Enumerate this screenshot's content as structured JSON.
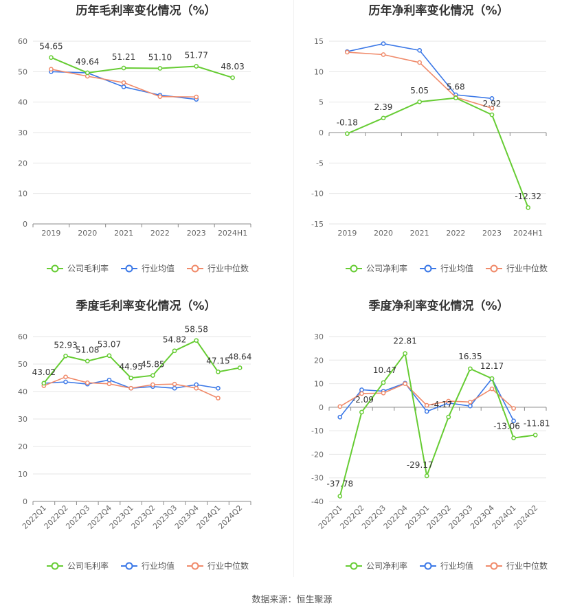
{
  "footer": {
    "source": "数据来源：恒生聚源"
  },
  "colors": {
    "company": "#66cc33",
    "avg": "#3b78e7",
    "median": "#f08a6a",
    "grid": "#e6e6e6",
    "axis": "#999999"
  },
  "chart_data": [
    {
      "type": "line",
      "title": "历年毛利率变化情况（%）",
      "categories": [
        "2019",
        "2020",
        "2021",
        "2022",
        "2023",
        "2024H1"
      ],
      "ylim": [
        0,
        60
      ],
      "yticks": [
        0,
        10,
        20,
        30,
        40,
        50,
        60
      ],
      "grid": true,
      "legend_position": "bottom",
      "series": [
        {
          "name": "公司毛利率",
          "color": "#66cc33",
          "values": [
            54.65,
            49.64,
            51.21,
            51.1,
            51.77,
            48.03
          ],
          "labels": [
            "54.65",
            "49.64",
            "51.21",
            "51.10",
            "51.77",
            "48.03"
          ]
        },
        {
          "name": "行业均值",
          "color": "#3b78e7",
          "values": [
            50.0,
            49.6,
            45.0,
            42.3,
            40.9,
            null
          ],
          "labels": []
        },
        {
          "name": "行业中位数",
          "color": "#f08a6a",
          "values": [
            50.8,
            48.5,
            46.4,
            41.8,
            41.7,
            null
          ],
          "labels": []
        }
      ]
    },
    {
      "type": "line",
      "title": "历年净利率变化情况（%）",
      "categories": [
        "2019",
        "2020",
        "2021",
        "2022",
        "2023",
        "2024H1"
      ],
      "ylim": [
        -15,
        15
      ],
      "yticks": [
        -15,
        -10,
        -5,
        0,
        5,
        10,
        15
      ],
      "grid": true,
      "legend_position": "bottom",
      "series": [
        {
          "name": "公司净利率",
          "color": "#66cc33",
          "values": [
            -0.18,
            2.39,
            5.05,
            5.68,
            2.92,
            -12.32
          ],
          "labels": [
            "-0.18",
            "2.39",
            "5.05",
            "5.68",
            "2.92",
            "-12.32"
          ]
        },
        {
          "name": "行业均值",
          "color": "#3b78e7",
          "values": [
            13.3,
            14.6,
            13.5,
            6.2,
            5.6,
            null
          ],
          "labels": []
        },
        {
          "name": "行业中位数",
          "color": "#f08a6a",
          "values": [
            13.2,
            12.8,
            11.5,
            5.8,
            4.0,
            null
          ],
          "labels": []
        }
      ]
    },
    {
      "type": "line",
      "title": "季度毛利率变化情况（%）",
      "categories": [
        "2022Q1",
        "2022Q2",
        "2022Q3",
        "2022Q4",
        "2023Q1",
        "2023Q2",
        "2023Q3",
        "2023Q4",
        "2024Q1",
        "2024Q2"
      ],
      "ylim": [
        0,
        60
      ],
      "yticks": [
        0,
        10,
        20,
        30,
        40,
        50,
        60
      ],
      "grid": true,
      "legend_position": "bottom",
      "series": [
        {
          "name": "公司毛利率",
          "color": "#66cc33",
          "values": [
            43.02,
            52.93,
            51.08,
            53.07,
            44.95,
            45.85,
            54.82,
            58.58,
            47.15,
            48.64
          ],
          "labels": [
            "43.02",
            "52.93",
            "51.08",
            "53.07",
            "44.95",
            "45.85",
            "54.82",
            "58.58",
            "47.15",
            "48.64"
          ]
        },
        {
          "name": "行业均值",
          "color": "#3b78e7",
          "values": [
            43.0,
            43.5,
            42.7,
            44.2,
            41.2,
            41.8,
            41.2,
            42.5,
            41.2,
            null
          ],
          "labels": []
        },
        {
          "name": "行业中位数",
          "color": "#f08a6a",
          "values": [
            42.1,
            45.3,
            43.2,
            42.8,
            41.2,
            42.5,
            42.7,
            41.2,
            37.6,
            null
          ],
          "labels": []
        }
      ]
    },
    {
      "type": "line",
      "title": "季度净利率变化情况（%）",
      "categories": [
        "2022Q1",
        "2022Q2",
        "2022Q3",
        "2022Q4",
        "2023Q1",
        "2023Q2",
        "2023Q3",
        "2023Q4",
        "2024Q1",
        "2024Q2"
      ],
      "ylim": [
        -40,
        30
      ],
      "yticks": [
        -40,
        -30,
        -20,
        -10,
        0,
        10,
        20,
        30
      ],
      "grid": true,
      "legend_position": "bottom",
      "series": [
        {
          "name": "公司净利率",
          "color": "#66cc33",
          "values": [
            -37.78,
            -2.09,
            10.47,
            22.81,
            -29.17,
            -4.17,
            16.35,
            12.17,
            -13.06,
            -11.81
          ],
          "labels": [
            "-37.78",
            "-2.09",
            "10.47",
            "22.81",
            "-29.17",
            "-4.17",
            "16.35",
            "12.17",
            "-13.06",
            "-11.81"
          ]
        },
        {
          "name": "行业均值",
          "color": "#3b78e7",
          "values": [
            -4.2,
            7.4,
            6.8,
            10.2,
            -1.8,
            1.8,
            0.5,
            12.1,
            -5.8,
            null
          ],
          "labels": []
        },
        {
          "name": "行业中位数",
          "color": "#f08a6a",
          "values": [
            0.3,
            5.8,
            6.0,
            10.0,
            0.8,
            2.6,
            2.2,
            7.8,
            -0.5,
            null
          ],
          "labels": []
        }
      ]
    }
  ]
}
